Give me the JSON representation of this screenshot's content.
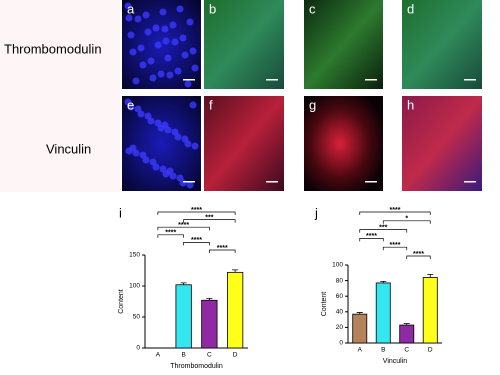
{
  "figure": {
    "row_labels": [
      "Thrombomodulin",
      "Vinculin"
    ],
    "panel_letters": [
      "a",
      "b",
      "c",
      "d",
      "e",
      "f",
      "g",
      "h"
    ]
  },
  "chart_data": [
    {
      "type": "bar",
      "panel": "i",
      "categories": [
        "A",
        "B",
        "C",
        "D"
      ],
      "values": [
        0,
        102,
        77,
        122
      ],
      "errors": [
        0,
        3,
        3,
        4
      ],
      "colors": [
        "#b5835a",
        "#33e6f0",
        "#8e2aa3",
        "#ffff1a"
      ],
      "ylim": [
        0,
        150
      ],
      "yticks": [
        0,
        50,
        100,
        150
      ],
      "ylabel": "Content",
      "xlabel": "Thrombomodulin",
      "significance": [
        {
          "pair": [
            "A",
            "D"
          ],
          "label": "****"
        },
        {
          "pair": [
            "B",
            "D"
          ],
          "label": "***"
        },
        {
          "pair": [
            "A",
            "C"
          ],
          "label": "****"
        },
        {
          "pair": [
            "A",
            "B"
          ],
          "label": "****"
        },
        {
          "pair": [
            "B",
            "C"
          ],
          "label": "****"
        },
        {
          "pair": [
            "C",
            "D"
          ],
          "label": "****"
        }
      ]
    },
    {
      "type": "bar",
      "panel": "j",
      "categories": [
        "A",
        "B",
        "C",
        "D"
      ],
      "values": [
        37,
        77,
        23,
        84
      ],
      "errors": [
        2,
        2,
        2,
        4
      ],
      "colors": [
        "#b5835a",
        "#33e6f0",
        "#8e2aa3",
        "#ffff1a"
      ],
      "ylim": [
        0,
        100
      ],
      "yticks": [
        0,
        20,
        40,
        60,
        80,
        100
      ],
      "ylabel": "Content",
      "xlabel": "Vinculin",
      "significance": [
        {
          "pair": [
            "A",
            "D"
          ],
          "label": "****"
        },
        {
          "pair": [
            "B",
            "D"
          ],
          "label": "*"
        },
        {
          "pair": [
            "A",
            "C"
          ],
          "label": "***"
        },
        {
          "pair": [
            "A",
            "B"
          ],
          "label": "****"
        },
        {
          "pair": [
            "B",
            "C"
          ],
          "label": "****"
        },
        {
          "pair": [
            "C",
            "D"
          ],
          "label": "****"
        }
      ]
    }
  ]
}
